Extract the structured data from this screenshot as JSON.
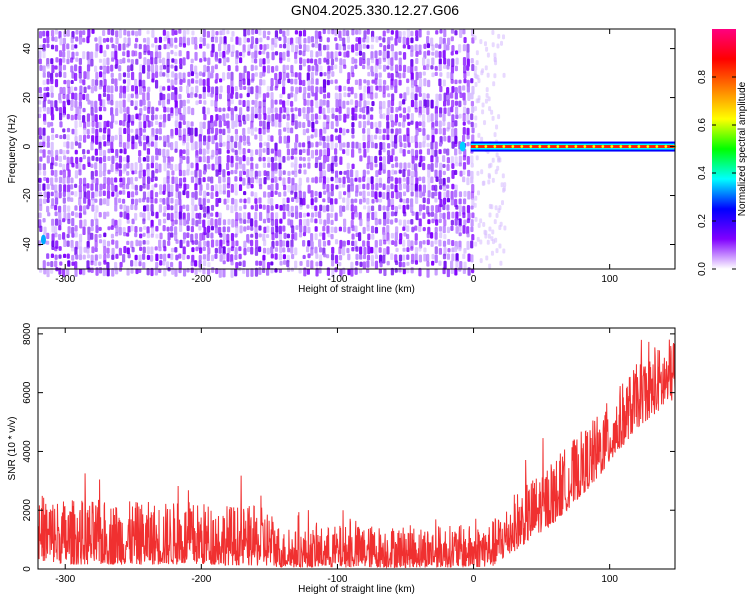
{
  "title": "GN04.2025.330.12.27.G06",
  "chart_data": [
    {
      "type": "heatmap",
      "xlabel": "Height of straight line (km)",
      "ylabel": "Frequency (Hz)",
      "xlim": [
        -320,
        148
      ],
      "ylim": [
        -50,
        48
      ],
      "xticks": [
        -300,
        -200,
        -100,
        0,
        100
      ],
      "yticks": [
        -40,
        -20,
        0,
        20,
        40
      ],
      "grid": false,
      "colorbar": {
        "label": "Normalized spectral amplitude",
        "ticks": [
          0.0,
          0.2,
          0.4,
          0.6,
          0.8
        ],
        "range": [
          0,
          1
        ],
        "colors": [
          "#ffffff",
          "#8000ff",
          "#0000ff",
          "#00ffff",
          "#00ff00",
          "#ffff00",
          "#ff8000",
          "#ff0000",
          "#ff0080"
        ]
      },
      "noise_region_x": [
        -320,
        -2
      ],
      "tone_region_x": [
        -2,
        148
      ],
      "tone_frequency_hz": 0,
      "tone_amplitude": 0.85
    },
    {
      "type": "line",
      "xlabel": "Height of straight line (km)",
      "ylabel": "SNR (10 * v/v)",
      "xlim": [
        -320,
        148
      ],
      "ylim": [
        0,
        8200
      ],
      "xticks": [
        -300,
        -200,
        -100,
        0,
        100
      ],
      "yticks": [
        0,
        2000,
        4000,
        6000,
        8000
      ],
      "line_color": "#f03030",
      "envelope": [
        {
          "x": -320,
          "lo": 300,
          "hi": 2600
        },
        {
          "x": -300,
          "lo": 150,
          "hi": 2400
        },
        {
          "x": -250,
          "lo": 150,
          "hi": 2300
        },
        {
          "x": -200,
          "lo": 150,
          "hi": 2300
        },
        {
          "x": -150,
          "lo": 100,
          "hi": 2100
        },
        {
          "x": -140,
          "lo": 50,
          "hi": 1300
        },
        {
          "x": -100,
          "lo": 50,
          "hi": 1500
        },
        {
          "x": -50,
          "lo": 50,
          "hi": 1500
        },
        {
          "x": 0,
          "lo": 50,
          "hi": 1500
        },
        {
          "x": 15,
          "lo": 100,
          "hi": 1700
        },
        {
          "x": 30,
          "lo": 600,
          "hi": 2600
        },
        {
          "x": 60,
          "lo": 1600,
          "hi": 3800
        },
        {
          "x": 90,
          "lo": 3000,
          "hi": 5200
        },
        {
          "x": 120,
          "lo": 4800,
          "hi": 7000
        },
        {
          "x": 148,
          "lo": 5800,
          "hi": 8000
        }
      ]
    }
  ]
}
